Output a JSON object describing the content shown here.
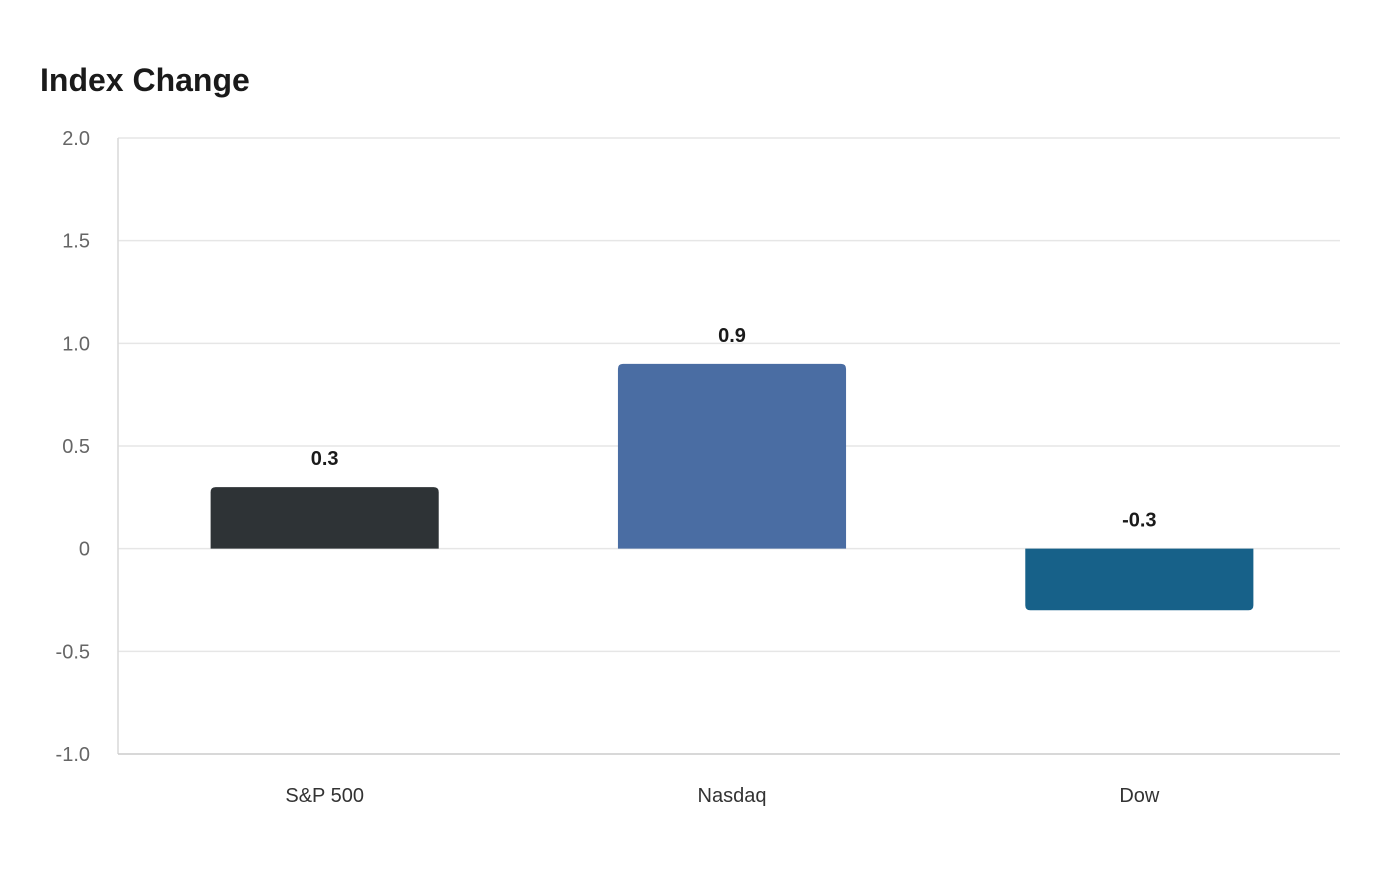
{
  "chart_data": {
    "type": "bar",
    "title": "Index Change",
    "categories": [
      "S&P 500",
      "Nasdaq",
      "Dow"
    ],
    "values": [
      0.3,
      0.9,
      -0.3
    ],
    "value_labels": [
      "0.3",
      "0.9",
      "-0.3"
    ],
    "colors": [
      "#2e3336",
      "#4a6da3",
      "#176189"
    ],
    "ylim": [
      -1.0,
      2.0
    ],
    "yticks": [
      -1.0,
      -0.5,
      0,
      0.5,
      1.0,
      1.5,
      2.0
    ],
    "ytick_labels": [
      "-1.0",
      "-0.5",
      "0",
      "0.5",
      "1.0",
      "1.5",
      "2.0"
    ],
    "xlabel": "",
    "ylabel": "",
    "grid": true,
    "legend": "none"
  }
}
